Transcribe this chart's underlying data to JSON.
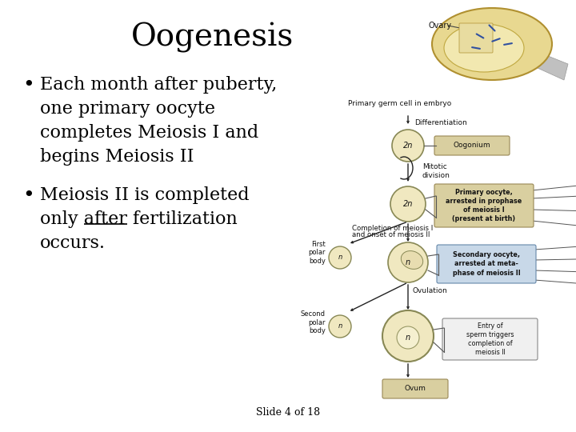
{
  "title": "Oogenesis",
  "title_fontsize": 28,
  "title_font": "serif",
  "background_color": "#ffffff",
  "bullet1_lines": [
    "Each month after puberty,",
    "one primary oocyte",
    "completes Meiosis I and",
    "begins Meiosis II"
  ],
  "bullet2_line1": "Meiosis II is completed",
  "bullet2_line2_parts": [
    "only ",
    "after",
    " fertilization"
  ],
  "bullet2_line3": "occurs.",
  "bullet_fontsize": 16,
  "bullet_font": "serif",
  "slide_label": "Slide 4 of 18",
  "slide_label_fontsize": 9,
  "text_color": "#000000",
  "cream": "#f0e8c0",
  "box_tan": "#d9cfa0",
  "box_blue": "#c8d8e8",
  "ovary_tan": "#e8d890",
  "arrow_color": "#222222"
}
